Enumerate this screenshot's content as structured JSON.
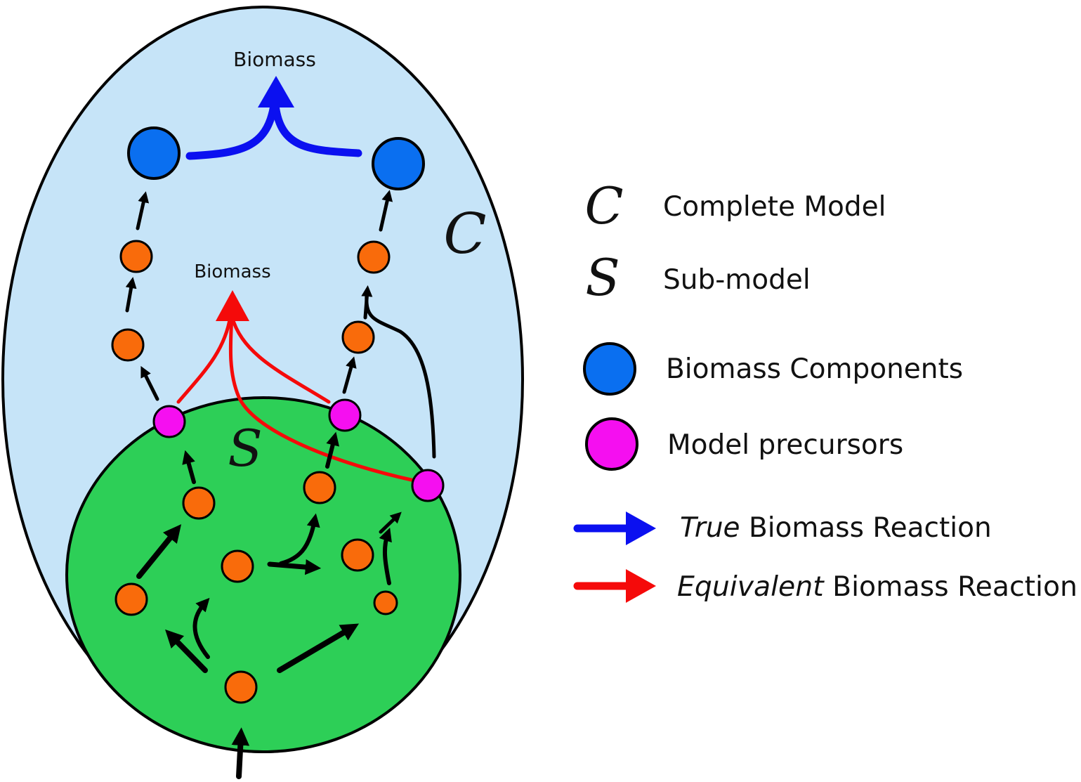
{
  "labels": {
    "biomass_top": "Biomass",
    "biomass_mid": "Biomass",
    "complete_letter": "C",
    "sub_letter": "S"
  },
  "legend": {
    "complete": {
      "symbol": "C",
      "text": "Complete Model"
    },
    "sub": {
      "symbol": "S",
      "text": "Sub-model"
    },
    "components": {
      "text": "Biomass Components"
    },
    "precursors": {
      "text": "Model precursors"
    },
    "true_reaction": {
      "italic": "True",
      "rest": " Biomass Reaction"
    },
    "equiv_reaction": {
      "italic": "Equivalent",
      "rest": " Biomass Reaction"
    }
  },
  "colors": {
    "complete_fill": "#c6e4f8",
    "sub_fill": "#2dcf57",
    "component_node": "#0a6ff0",
    "precursor_node": "#f50ff0",
    "metabolite_node": "#f96b0b",
    "true_reaction": "#0b10f0",
    "equiv_reaction": "#f50a0a"
  }
}
